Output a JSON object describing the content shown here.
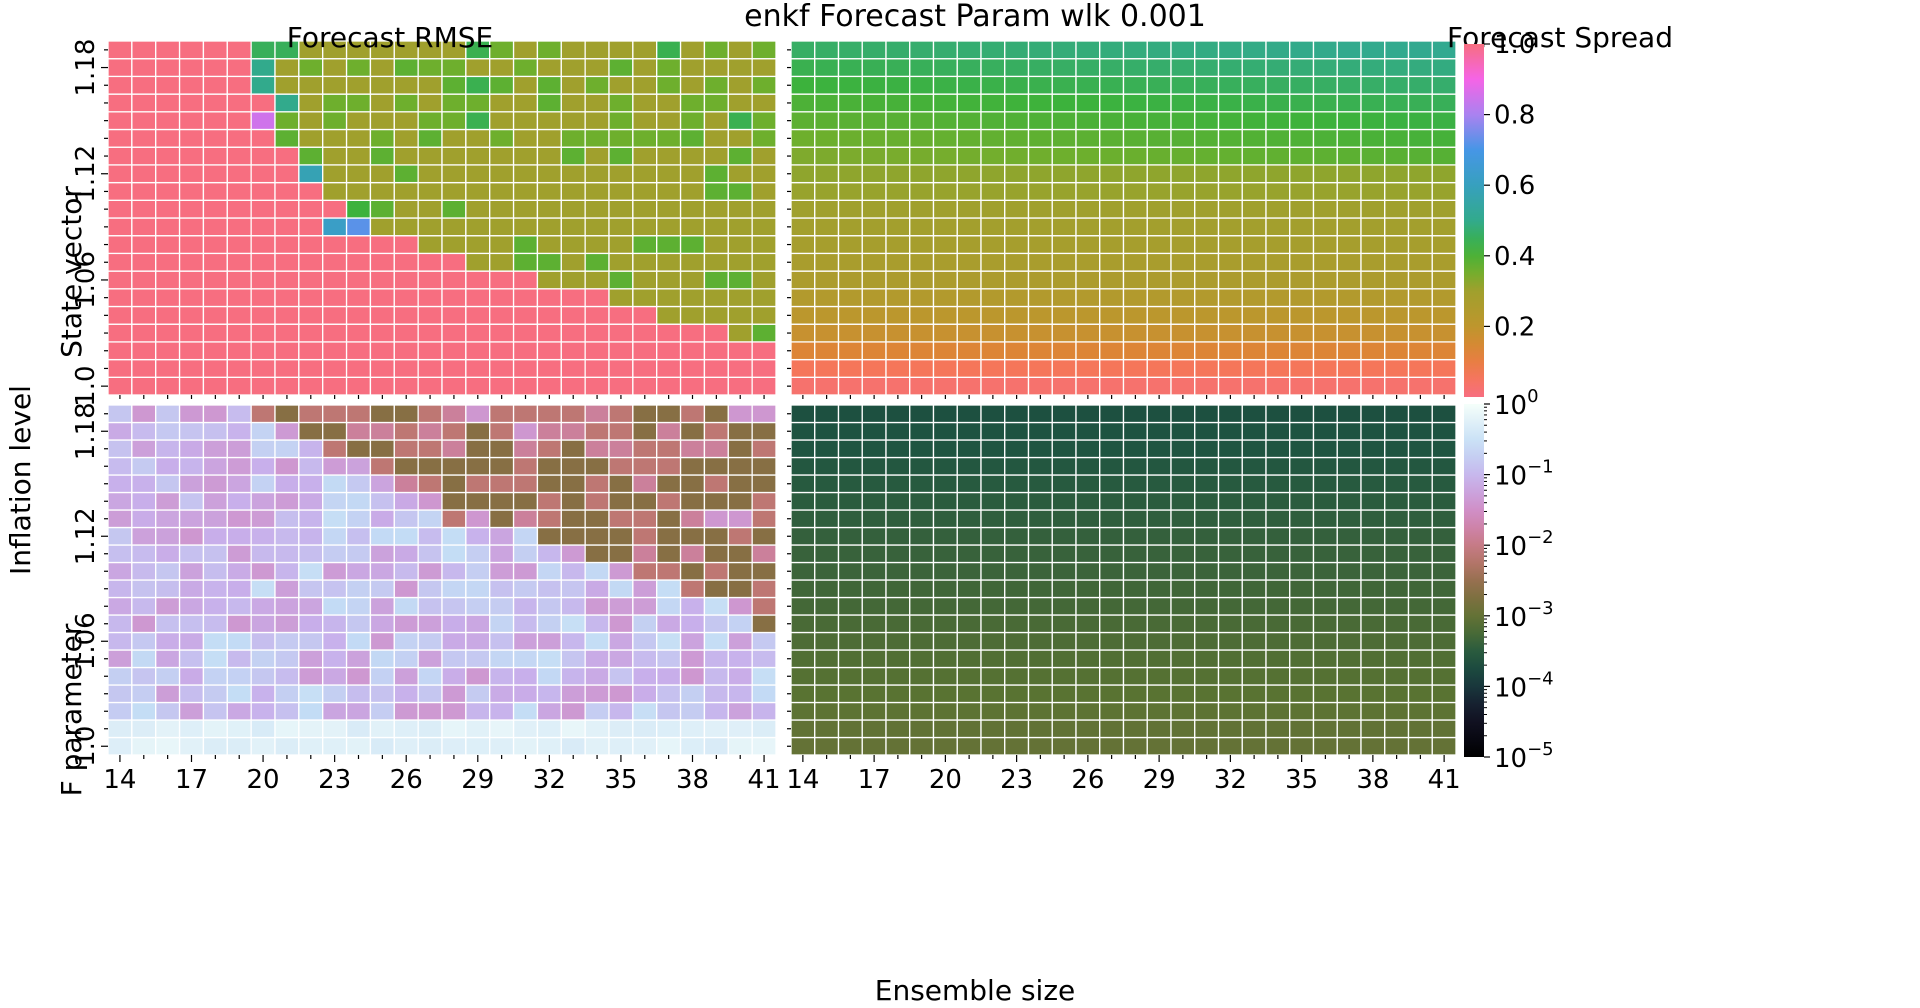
{
  "figure": {
    "suptitle": "enkf Forecast Param wlk 0.001",
    "common_xlabel": "Ensemble size",
    "common_ylabel": "Inflation level"
  },
  "chart_data": [
    {
      "type": "heatmap",
      "title": "Forecast RMSE",
      "ylabel": "State vector",
      "x": [
        14,
        15,
        16,
        17,
        18,
        19,
        20,
        21,
        22,
        23,
        24,
        25,
        26,
        27,
        28,
        29,
        30,
        31,
        32,
        33,
        34,
        35,
        36,
        37,
        38,
        39,
        40,
        41
      ],
      "x_ticks": [
        "14",
        "17",
        "20",
        "23",
        "26",
        "29",
        "32",
        "35",
        "38",
        "41"
      ],
      "y": [
        1.0,
        1.01,
        1.02,
        1.03,
        1.04,
        1.05,
        1.06,
        1.07,
        1.08,
        1.09,
        1.1,
        1.11,
        1.12,
        1.13,
        1.14,
        1.15,
        1.16,
        1.17,
        1.18,
        1.19
      ],
      "y_ticks": [
        "1.0",
        "1.06",
        "1.12",
        "1.18"
      ],
      "value_range": [
        0,
        1
      ],
      "colormap": "husl",
      "values_description": "x index threshold per inflation row; left of threshold saturates near 1.0, right is ~0.3",
      "threshold_by_row": [
        28,
        28,
        28,
        26,
        23,
        21,
        18,
        15,
        13,
        11,
        10,
        9,
        8,
        8,
        7,
        7,
        7,
        7,
        7,
        7
      ],
      "high_value": 1.0,
      "low_value": 0.3,
      "anomalies": [
        {
          "x": 20,
          "y": 1.15,
          "value": 0.85
        },
        {
          "x": 21,
          "y": 1.16,
          "value": 0.5
        },
        {
          "x": 22,
          "y": 1.12,
          "value": 0.58
        },
        {
          "x": 23,
          "y": 1.09,
          "value": 0.62
        },
        {
          "x": 24,
          "y": 1.09,
          "value": 0.72
        },
        {
          "x": 24,
          "y": 1.1,
          "value": 0.42
        },
        {
          "x": 20,
          "y": 1.17,
          "value": 0.5
        },
        {
          "x": 20,
          "y": 1.18,
          "value": 0.5
        },
        {
          "x": 20,
          "y": 1.19,
          "value": 0.45
        },
        {
          "x": 21,
          "y": 1.19,
          "value": 0.45
        }
      ]
    },
    {
      "type": "heatmap",
      "title": "Forecast Spread",
      "ylabel": "",
      "x": [
        14,
        15,
        16,
        17,
        18,
        19,
        20,
        21,
        22,
        23,
        24,
        25,
        26,
        27,
        28,
        29,
        30,
        31,
        32,
        33,
        34,
        35,
        36,
        37,
        38,
        39,
        40,
        41
      ],
      "x_ticks": [
        "14",
        "17",
        "20",
        "23",
        "26",
        "29",
        "32",
        "35",
        "38",
        "41"
      ],
      "y": [
        1.0,
        1.01,
        1.02,
        1.03,
        1.04,
        1.05,
        1.06,
        1.07,
        1.08,
        1.09,
        1.1,
        1.11,
        1.12,
        1.13,
        1.14,
        1.15,
        1.16,
        1.17,
        1.18,
        1.19
      ],
      "value_range": [
        0,
        1
      ],
      "colormap": "husl",
      "row_values": [
        0.03,
        0.06,
        0.13,
        0.18,
        0.21,
        0.24,
        0.26,
        0.27,
        0.28,
        0.29,
        0.3,
        0.31,
        0.32,
        0.34,
        0.36,
        0.38,
        0.4,
        0.42,
        0.44,
        0.46
      ]
    },
    {
      "type": "heatmap",
      "title": "",
      "ylabel": "F parameter",
      "x": [
        14,
        15,
        16,
        17,
        18,
        19,
        20,
        21,
        22,
        23,
        24,
        25,
        26,
        27,
        28,
        29,
        30,
        31,
        32,
        33,
        34,
        35,
        36,
        37,
        38,
        39,
        40,
        41
      ],
      "x_ticks": [
        "14",
        "17",
        "20",
        "23",
        "26",
        "29",
        "32",
        "35",
        "38",
        "41"
      ],
      "y": [
        1.0,
        1.01,
        1.02,
        1.03,
        1.04,
        1.05,
        1.06,
        1.07,
        1.08,
        1.09,
        1.1,
        1.11,
        1.12,
        1.13,
        1.14,
        1.15,
        1.16,
        1.17,
        1.18,
        1.19
      ],
      "y_ticks": [
        "1.0",
        "1.06",
        "1.12",
        "1.18"
      ],
      "scale": "log",
      "value_range": [
        1e-05,
        1
      ],
      "colormap": "cubehelix",
      "values_description": "lower-left region ~0.1-1, upper-right region ~1e-3 to 1e-2"
    },
    {
      "type": "heatmap",
      "title": "",
      "ylabel": "",
      "x": [
        14,
        15,
        16,
        17,
        18,
        19,
        20,
        21,
        22,
        23,
        24,
        25,
        26,
        27,
        28,
        29,
        30,
        31,
        32,
        33,
        34,
        35,
        36,
        37,
        38,
        39,
        40,
        41
      ],
      "x_ticks": [
        "14",
        "17",
        "20",
        "23",
        "26",
        "29",
        "32",
        "35",
        "38",
        "41"
      ],
      "y": [
        1.0,
        1.01,
        1.02,
        1.03,
        1.04,
        1.05,
        1.06,
        1.07,
        1.08,
        1.09,
        1.1,
        1.11,
        1.12,
        1.13,
        1.14,
        1.15,
        1.16,
        1.17,
        1.18,
        1.19
      ],
      "scale": "log",
      "value_range": [
        1e-05,
        1
      ],
      "colormap": "cubehelix",
      "values_description": "nearly uniform, ~3e-4 at top increasing to ~1.5e-3 at bottom"
    }
  ],
  "colorbars": [
    {
      "scale": "linear",
      "ticks": [
        "1.0",
        "0.8",
        "0.6",
        "0.4",
        "0.2"
      ],
      "range": [
        0,
        1
      ]
    },
    {
      "scale": "log",
      "ticks": [
        "0",
        "-1",
        "-2",
        "-3",
        "-4",
        "-5"
      ],
      "tick_base": "10",
      "range": [
        1e-05,
        1
      ]
    }
  ]
}
